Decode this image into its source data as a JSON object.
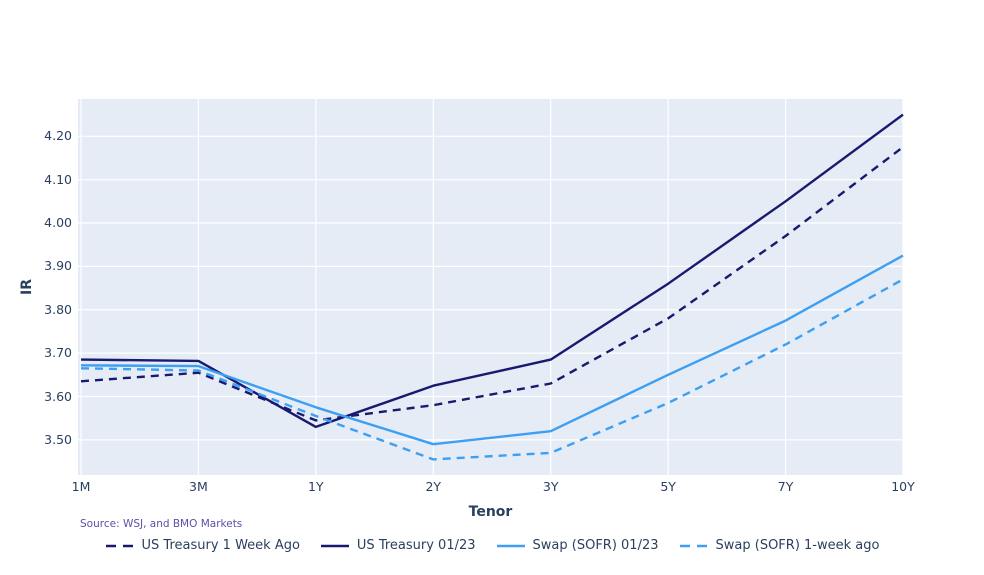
{
  "source_note": "Source: WSJ, and BMO Markets",
  "colors": {
    "plot_background": "#E5ECF6",
    "gridline": "#FFFFFF",
    "tick_text": "#2a3f5f",
    "source_text": "#5b51a5",
    "treasury_navy": "#191970",
    "swap_blue": "#3D9FF2"
  },
  "chart_data": {
    "type": "line",
    "title": "",
    "xlabel": "Tenor",
    "ylabel": "IR",
    "categories": [
      "1M",
      "3M",
      "1Y",
      "2Y",
      "3Y",
      "5Y",
      "7Y",
      "10Y"
    ],
    "yticks": [
      3.5,
      3.6,
      3.7,
      3.8,
      3.9,
      4.0,
      4.1,
      4.2
    ],
    "ytick_labels": [
      "3.50",
      "3.60",
      "3.70",
      "3.80",
      "3.90",
      "4.00",
      "4.10",
      "4.20"
    ],
    "ylim": [
      3.419,
      4.286
    ],
    "grid": true,
    "legend_position": "bottom",
    "series": [
      {
        "name": "US Treasury 1 Week Ago",
        "color": "#191970",
        "dash": true,
        "values": [
          3.635,
          3.655,
          3.545,
          3.58,
          3.63,
          3.78,
          3.97,
          4.175
        ]
      },
      {
        "name": "US Treasury 01/23",
        "color": "#191970",
        "dash": false,
        "values": [
          3.685,
          3.682,
          3.53,
          3.625,
          3.685,
          3.86,
          4.05,
          4.25
        ]
      },
      {
        "name": "Swap (SOFR) 01/23",
        "color": "#3D9FF2",
        "dash": false,
        "values": [
          3.672,
          3.67,
          3.575,
          3.49,
          3.52,
          3.65,
          3.775,
          3.925
        ]
      },
      {
        "name": "Swap (SOFR) 1-week ago",
        "color": "#3D9FF2",
        "dash": true,
        "values": [
          3.665,
          3.66,
          3.555,
          3.455,
          3.47,
          3.585,
          3.72,
          3.87
        ]
      }
    ]
  }
}
